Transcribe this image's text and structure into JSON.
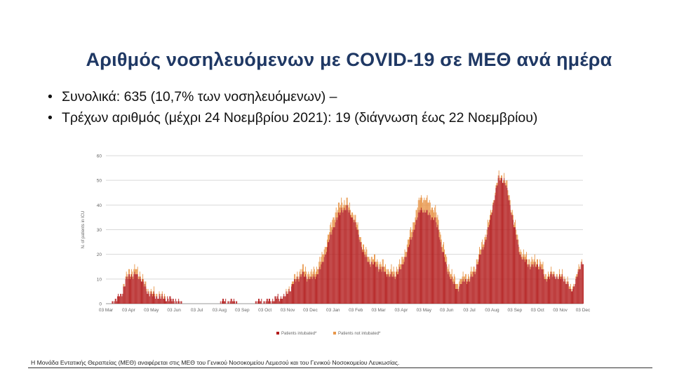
{
  "title": "Αριθμός νοσηλευόμενων με COVID-19 σε ΜΕΘ ανά ημέρα",
  "bullets": [
    "Συνολικά: 635 (10,7% των νοσηλευόμενων) –",
    "Τρέχων αριθμός (μέχρι 24 Νοεμβρίου 2021): 19 (διάγνωση έως 22 Νοεμβρίου)"
  ],
  "footer": "Η Μονάδα Εντατικής Θεραπείας (ΜΕΘ) αναφέρεται στις ΜΕΘ του Γενικού Νοσοκομείου Λεμεσού και του Γενικού Νοσοκομείου Λευκωσίας.",
  "colors": {
    "title": "#1f3864",
    "intubated": "#b31b1b",
    "not_intubated": "#e8964a"
  },
  "chart_data": {
    "type": "bar",
    "stacked": true,
    "ylabel": "N. of patients in ICU",
    "ylim": [
      0,
      60
    ],
    "yticks": [
      0,
      10,
      20,
      30,
      40,
      50,
      60
    ],
    "grid": true,
    "legend_position": "bottom",
    "xticks": [
      "03 Mar",
      "03 Apr",
      "03 May",
      "03 Jun",
      "03 Jul",
      "03 Aug",
      "03 Sep",
      "03 Oct",
      "03 Nov",
      "03 Dec",
      "03 Jan",
      "03 Feb",
      "03 Mar",
      "03 Apr",
      "03 May",
      "03 Jun",
      "03 Jul",
      "03 Aug",
      "03 Sep",
      "03 Oct",
      "03 Nov",
      "03 Dec"
    ],
    "series": [
      {
        "name": "Patients intubated*",
        "color": "#b31b1b",
        "anchors": [
          [
            0,
            0
          ],
          [
            5,
            0
          ],
          [
            15,
            2
          ],
          [
            22,
            5
          ],
          [
            27,
            10
          ],
          [
            31,
            12
          ],
          [
            36,
            11
          ],
          [
            40,
            12
          ],
          [
            43,
            11
          ],
          [
            47,
            10
          ],
          [
            55,
            5
          ],
          [
            60,
            4
          ],
          [
            66,
            3
          ],
          [
            72,
            3
          ],
          [
            80,
            2
          ],
          [
            90,
            2
          ],
          [
            95,
            1
          ],
          [
            110,
            0
          ],
          [
            150,
            0
          ],
          [
            158,
            1
          ],
          [
            165,
            1
          ],
          [
            172,
            1
          ],
          [
            178,
            0
          ],
          [
            195,
            0
          ],
          [
            205,
            1
          ],
          [
            215,
            1
          ],
          [
            225,
            2
          ],
          [
            240,
            3
          ],
          [
            250,
            8
          ],
          [
            262,
            12
          ],
          [
            268,
            11
          ],
          [
            275,
            10
          ],
          [
            285,
            13
          ],
          [
            290,
            17
          ],
          [
            298,
            25
          ],
          [
            305,
            32
          ],
          [
            315,
            38
          ],
          [
            322,
            39
          ],
          [
            328,
            36
          ],
          [
            333,
            33
          ],
          [
            338,
            28
          ],
          [
            345,
            20
          ],
          [
            352,
            17
          ],
          [
            360,
            16
          ],
          [
            368,
            14
          ],
          [
            378,
            12
          ],
          [
            385,
            11
          ],
          [
            395,
            14
          ],
          [
            403,
            21
          ],
          [
            410,
            28
          ],
          [
            416,
            34
          ],
          [
            422,
            39
          ],
          [
            428,
            37
          ],
          [
            434,
            36
          ],
          [
            440,
            34
          ],
          [
            445,
            30
          ],
          [
            450,
            22
          ],
          [
            457,
            14
          ],
          [
            465,
            8
          ],
          [
            470,
            6
          ],
          [
            476,
            8
          ],
          [
            481,
            10
          ],
          [
            486,
            9
          ],
          [
            492,
            12
          ],
          [
            497,
            16
          ],
          [
            503,
            21
          ],
          [
            510,
            28
          ],
          [
            515,
            35
          ],
          [
            520,
            43
          ],
          [
            525,
            50
          ],
          [
            528,
            51
          ],
          [
            533,
            50
          ],
          [
            536,
            47
          ],
          [
            541,
            40
          ],
          [
            546,
            32
          ],
          [
            551,
            25
          ],
          [
            556,
            19
          ],
          [
            562,
            17
          ],
          [
            569,
            15
          ],
          [
            577,
            16
          ],
          [
            583,
            14
          ],
          [
            588,
            10
          ],
          [
            594,
            11
          ],
          [
            600,
            12
          ],
          [
            606,
            10
          ],
          [
            611,
            11
          ],
          [
            617,
            8
          ],
          [
            622,
            5
          ],
          [
            626,
            7
          ],
          [
            630,
            10
          ],
          [
            633,
            13
          ],
          [
            636,
            16
          ],
          [
            638,
            17
          ],
          [
            639,
            17
          ]
        ]
      },
      {
        "name": "Patients not intubated*",
        "color": "#e8964a",
        "anchors": [
          [
            0,
            0
          ],
          [
            20,
            0
          ],
          [
            27,
            1
          ],
          [
            36,
            2
          ],
          [
            42,
            2
          ],
          [
            48,
            1
          ],
          [
            55,
            1
          ],
          [
            65,
            1
          ],
          [
            85,
            0
          ],
          [
            235,
            0
          ],
          [
            250,
            1
          ],
          [
            262,
            2
          ],
          [
            275,
            2
          ],
          [
            285,
            3
          ],
          [
            298,
            3
          ],
          [
            305,
            4
          ],
          [
            315,
            3
          ],
          [
            325,
            2
          ],
          [
            338,
            2
          ],
          [
            345,
            2
          ],
          [
            360,
            2
          ],
          [
            378,
            2
          ],
          [
            395,
            2
          ],
          [
            405,
            3
          ],
          [
            416,
            4
          ],
          [
            422,
            5
          ],
          [
            430,
            5
          ],
          [
            440,
            4
          ],
          [
            450,
            3
          ],
          [
            470,
            2
          ],
          [
            490,
            2
          ],
          [
            510,
            2
          ],
          [
            520,
            1
          ],
          [
            530,
            1
          ],
          [
            540,
            2
          ],
          [
            560,
            2
          ],
          [
            580,
            2
          ],
          [
            600,
            1
          ],
          [
            639,
            1
          ]
        ]
      }
    ]
  }
}
